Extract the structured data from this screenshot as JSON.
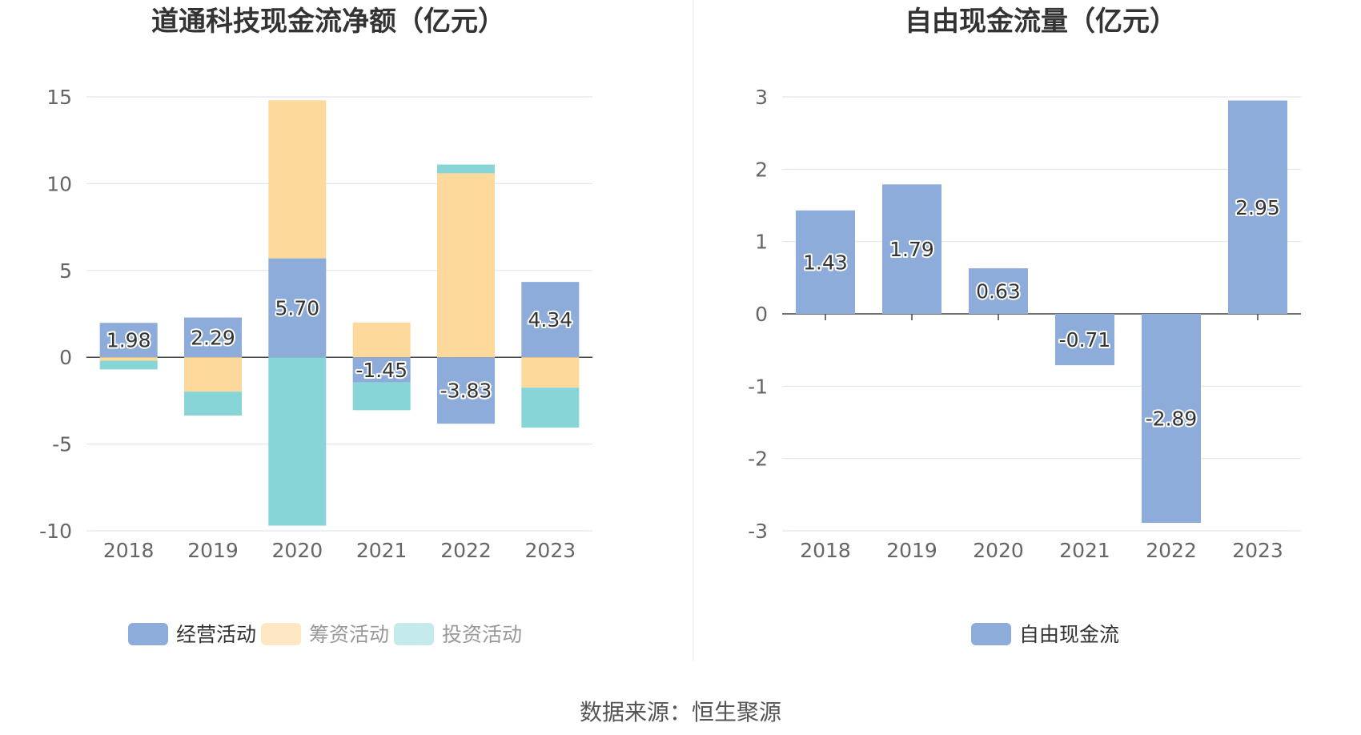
{
  "chart_data": [
    {
      "type": "bar",
      "stacked": true,
      "title": "道通科技现金流净额（亿元）",
      "categories": [
        "2018",
        "2019",
        "2020",
        "2021",
        "2022",
        "2023"
      ],
      "series": [
        {
          "name": "经营活动",
          "color": "#8eacd9",
          "values": [
            1.98,
            2.29,
            5.7,
            -1.45,
            -3.83,
            4.34
          ],
          "labels": [
            "1.98",
            "2.29",
            "5.70",
            "-1.45",
            "-3.83",
            "4.34"
          ]
        },
        {
          "name": "筹资活动",
          "color": "#fdd99b",
          "values": [
            -0.2,
            -1.98,
            9.1,
            2.0,
            10.6,
            -1.75
          ]
        },
        {
          "name": "投资活动",
          "color": "#87d5d7",
          "values": [
            -0.5,
            -1.38,
            -9.7,
            -1.6,
            0.5,
            -2.3
          ]
        }
      ],
      "legend_inactive_colors": [
        "#8eacd9",
        "#fde7c4",
        "#c4eaeb"
      ],
      "yticks": [
        "-10",
        "-5",
        "0",
        "5",
        "10",
        "15"
      ],
      "ylim": [
        -10,
        15
      ],
      "grid": true,
      "legend_position": "bottom"
    },
    {
      "type": "bar",
      "title": "自由现金流量（亿元）",
      "categories": [
        "2018",
        "2019",
        "2020",
        "2021",
        "2022",
        "2023"
      ],
      "series": [
        {
          "name": "自由现金流",
          "color": "#8eacd9",
          "values": [
            1.43,
            1.79,
            0.63,
            -0.71,
            -2.89,
            2.95
          ],
          "labels": [
            "1.43",
            "1.79",
            "0.63",
            "-0.71",
            "-2.89",
            "2.95"
          ]
        }
      ],
      "yticks": [
        "-3",
        "-2",
        "-1",
        "0",
        "1",
        "2",
        "3"
      ],
      "ylim": [
        -3,
        3
      ],
      "grid": true,
      "legend_position": "bottom"
    }
  ],
  "source": "数据来源：恒生聚源"
}
